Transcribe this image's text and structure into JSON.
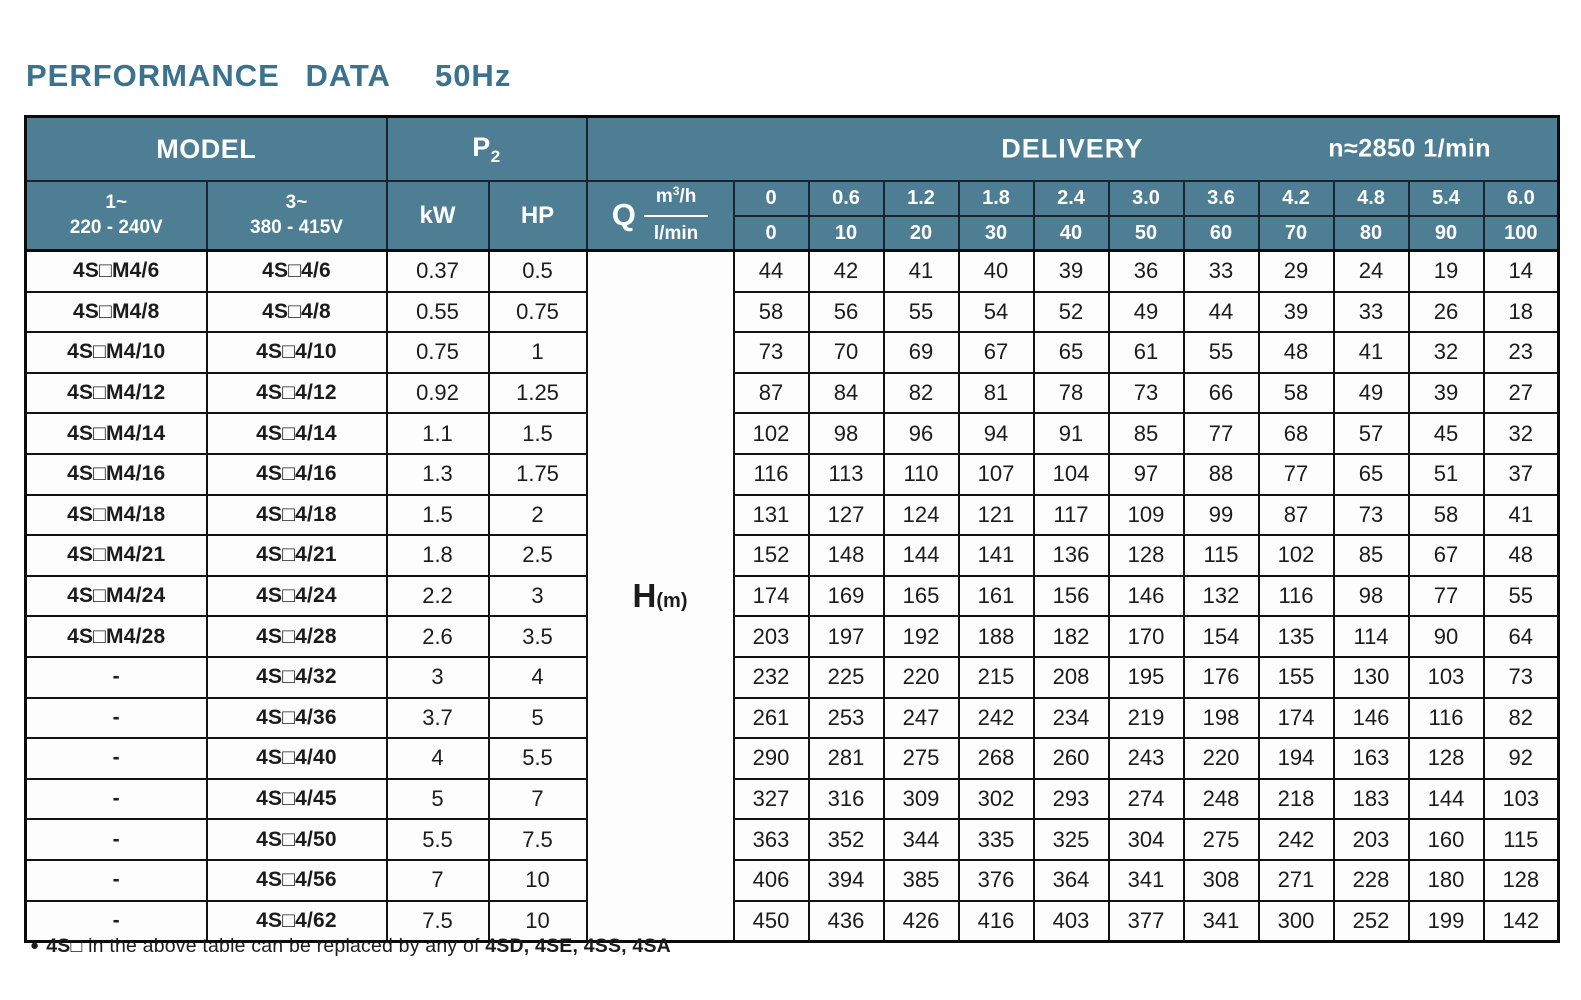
{
  "title": {
    "main": "PERFORMANCE DATA",
    "frequency": "50Hz"
  },
  "colors": {
    "header_teal": "#4e7e94",
    "header_line": "#17262e",
    "title_blue": "#3a7290",
    "grid_black": "#121212",
    "cell_bg": "#fdfdfd",
    "header_text": "#ffffff"
  },
  "table": {
    "header": {
      "model": "MODEL",
      "p2_base": "P",
      "p2_sub": "2",
      "delivery": "DELIVERY",
      "speed": "n≈2850 1/min",
      "phase1_line1": "1~",
      "phase1_line2": "220 - 240V",
      "phase3_line1": "3~",
      "phase3_line2": "380 - 415V",
      "kw": "kW",
      "hp": "HP",
      "q": "Q",
      "unit_m3h_base": "m",
      "unit_m3h_sup": "3",
      "unit_m3h_rest": "/h",
      "unit_lmin": "l/min",
      "h_base": "H",
      "h_sub": "(m)"
    },
    "flow": {
      "m3h": [
        "0",
        "0.6",
        "1.2",
        "1.8",
        "2.4",
        "3.0",
        "3.6",
        "4.2",
        "4.8",
        "5.4",
        "6.0"
      ],
      "lmin": [
        "0",
        "10",
        "20",
        "30",
        "40",
        "50",
        "60",
        "70",
        "80",
        "90",
        "100"
      ]
    },
    "rows": [
      {
        "model_1phase": "4S□M4/6",
        "model_3phase": "4S□4/6",
        "kw": "0.37",
        "hp": "0.5",
        "head_m": [
          44,
          42,
          41,
          40,
          39,
          36,
          33,
          29,
          24,
          19,
          14
        ]
      },
      {
        "model_1phase": "4S□M4/8",
        "model_3phase": "4S□4/8",
        "kw": "0.55",
        "hp": "0.75",
        "head_m": [
          58,
          56,
          55,
          54,
          52,
          49,
          44,
          39,
          33,
          26,
          18
        ]
      },
      {
        "model_1phase": "4S□M4/10",
        "model_3phase": "4S□4/10",
        "kw": "0.75",
        "hp": "1",
        "head_m": [
          73,
          70,
          69,
          67,
          65,
          61,
          55,
          48,
          41,
          32,
          23
        ]
      },
      {
        "model_1phase": "4S□M4/12",
        "model_3phase": "4S□4/12",
        "kw": "0.92",
        "hp": "1.25",
        "head_m": [
          87,
          84,
          82,
          81,
          78,
          73,
          66,
          58,
          49,
          39,
          27
        ]
      },
      {
        "model_1phase": "4S□M4/14",
        "model_3phase": "4S□4/14",
        "kw": "1.1",
        "hp": "1.5",
        "head_m": [
          102,
          98,
          96,
          94,
          91,
          85,
          77,
          68,
          57,
          45,
          32
        ]
      },
      {
        "model_1phase": "4S□M4/16",
        "model_3phase": "4S□4/16",
        "kw": "1.3",
        "hp": "1.75",
        "head_m": [
          116,
          113,
          110,
          107,
          104,
          97,
          88,
          77,
          65,
          51,
          37
        ]
      },
      {
        "model_1phase": "4S□M4/18",
        "model_3phase": "4S□4/18",
        "kw": "1.5",
        "hp": "2",
        "head_m": [
          131,
          127,
          124,
          121,
          117,
          109,
          99,
          87,
          73,
          58,
          41
        ]
      },
      {
        "model_1phase": "4S□M4/21",
        "model_3phase": "4S□4/21",
        "kw": "1.8",
        "hp": "2.5",
        "head_m": [
          152,
          148,
          144,
          141,
          136,
          128,
          115,
          102,
          85,
          67,
          48
        ]
      },
      {
        "model_1phase": "4S□M4/24",
        "model_3phase": "4S□4/24",
        "kw": "2.2",
        "hp": "3",
        "head_m": [
          174,
          169,
          165,
          161,
          156,
          146,
          132,
          116,
          98,
          77,
          55
        ]
      },
      {
        "model_1phase": "4S□M4/28",
        "model_3phase": "4S□4/28",
        "kw": "2.6",
        "hp": "3.5",
        "head_m": [
          203,
          197,
          192,
          188,
          182,
          170,
          154,
          135,
          114,
          90,
          64
        ]
      },
      {
        "model_1phase": "-",
        "model_3phase": "4S□4/32",
        "kw": "3",
        "hp": "4",
        "head_m": [
          232,
          225,
          220,
          215,
          208,
          195,
          176,
          155,
          130,
          103,
          73
        ]
      },
      {
        "model_1phase": "-",
        "model_3phase": "4S□4/36",
        "kw": "3.7",
        "hp": "5",
        "head_m": [
          261,
          253,
          247,
          242,
          234,
          219,
          198,
          174,
          146,
          116,
          82
        ]
      },
      {
        "model_1phase": "-",
        "model_3phase": "4S□4/40",
        "kw": "4",
        "hp": "5.5",
        "head_m": [
          290,
          281,
          275,
          268,
          260,
          243,
          220,
          194,
          163,
          128,
          92
        ]
      },
      {
        "model_1phase": "-",
        "model_3phase": "4S□4/45",
        "kw": "5",
        "hp": "7",
        "head_m": [
          327,
          316,
          309,
          302,
          293,
          274,
          248,
          218,
          183,
          144,
          103
        ]
      },
      {
        "model_1phase": "-",
        "model_3phase": "4S□4/50",
        "kw": "5.5",
        "hp": "7.5",
        "head_m": [
          363,
          352,
          344,
          335,
          325,
          304,
          275,
          242,
          203,
          160,
          115
        ]
      },
      {
        "model_1phase": "-",
        "model_3phase": "4S□4/56",
        "kw": "7",
        "hp": "10",
        "head_m": [
          406,
          394,
          385,
          376,
          364,
          341,
          308,
          271,
          228,
          180,
          128
        ]
      },
      {
        "model_1phase": "-",
        "model_3phase": "4S□4/62",
        "kw": "7.5",
        "hp": "10",
        "head_m": [
          450,
          436,
          426,
          416,
          403,
          377,
          341,
          300,
          252,
          199,
          142
        ]
      }
    ]
  },
  "footnote": {
    "bullet": "●",
    "lead": "4S□",
    "text": "in the above table can be replaced by any of",
    "models": "4SD, 4SE, 4SS, 4SA"
  }
}
